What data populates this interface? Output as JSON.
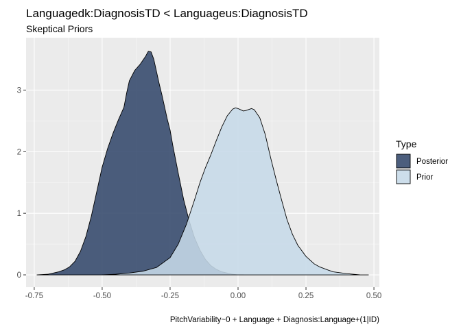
{
  "chart_data": {
    "type": "area",
    "title": "Languagedk:DiagnosisTD < Languageus:DiagnosisTD",
    "subtitle": "Skeptical Priors",
    "caption": "PitchVariability~0 + Language + Diagnosis:Language+(1|ID)",
    "xlabel": "",
    "ylabel": "",
    "xlim": [
      -0.78,
      0.52
    ],
    "ylim": [
      -0.2,
      3.85
    ],
    "x_ticks": [
      -0.75,
      -0.5,
      -0.25,
      0.0,
      0.25,
      0.5
    ],
    "x_tick_labels": [
      "-0.75",
      "-0.50",
      "-0.25",
      "0.00",
      "0.25",
      "0.50"
    ],
    "y_ticks": [
      0,
      1,
      2,
      3
    ],
    "y_tick_labels": [
      "0",
      "1",
      "2",
      "3"
    ],
    "grid": true,
    "legend": {
      "title": "Type",
      "position": "right"
    },
    "series": [
      {
        "name": "Posterior",
        "color": "#33486b",
        "opacity": 0.88,
        "x": [
          -0.74,
          -0.7,
          -0.66,
          -0.64,
          -0.62,
          -0.6,
          -0.58,
          -0.56,
          -0.54,
          -0.52,
          -0.5,
          -0.48,
          -0.46,
          -0.44,
          -0.42,
          -0.41,
          -0.4,
          -0.38,
          -0.36,
          -0.34,
          -0.33,
          -0.32,
          -0.31,
          -0.3,
          -0.29,
          -0.28,
          -0.27,
          -0.26,
          -0.25,
          -0.24,
          -0.22,
          -0.2,
          -0.18,
          -0.16,
          -0.14,
          -0.12,
          -0.1,
          -0.08,
          -0.06,
          -0.04,
          -0.02,
          0.0,
          0.02
        ],
        "y": [
          0.0,
          0.01,
          0.05,
          0.08,
          0.13,
          0.22,
          0.38,
          0.62,
          0.95,
          1.35,
          1.75,
          2.05,
          2.3,
          2.52,
          2.72,
          2.95,
          3.15,
          3.32,
          3.42,
          3.55,
          3.63,
          3.62,
          3.5,
          3.3,
          3.1,
          2.92,
          2.72,
          2.52,
          2.35,
          2.1,
          1.65,
          1.22,
          0.88,
          0.6,
          0.4,
          0.25,
          0.15,
          0.09,
          0.05,
          0.03,
          0.01,
          0.0,
          0.0
        ]
      },
      {
        "name": "Prior",
        "color": "#c6d9e8",
        "opacity": 0.88,
        "x": [
          -0.5,
          -0.45,
          -0.4,
          -0.35,
          -0.3,
          -0.25,
          -0.22,
          -0.19,
          -0.16,
          -0.14,
          -0.12,
          -0.1,
          -0.08,
          -0.06,
          -0.04,
          -0.02,
          -0.01,
          0.0,
          0.01,
          0.02,
          0.03,
          0.05,
          0.06,
          0.08,
          0.1,
          0.12,
          0.14,
          0.16,
          0.18,
          0.2,
          0.22,
          0.25,
          0.28,
          0.3,
          0.33,
          0.35,
          0.4,
          0.45,
          0.48
        ],
        "y": [
          0.0,
          0.01,
          0.03,
          0.06,
          0.12,
          0.28,
          0.5,
          0.82,
          1.22,
          1.5,
          1.74,
          1.95,
          2.18,
          2.4,
          2.58,
          2.69,
          2.71,
          2.7,
          2.68,
          2.66,
          2.67,
          2.7,
          2.68,
          2.55,
          2.28,
          1.9,
          1.55,
          1.22,
          0.9,
          0.66,
          0.48,
          0.3,
          0.18,
          0.13,
          0.08,
          0.05,
          0.02,
          0.0,
          0.0
        ]
      }
    ]
  }
}
